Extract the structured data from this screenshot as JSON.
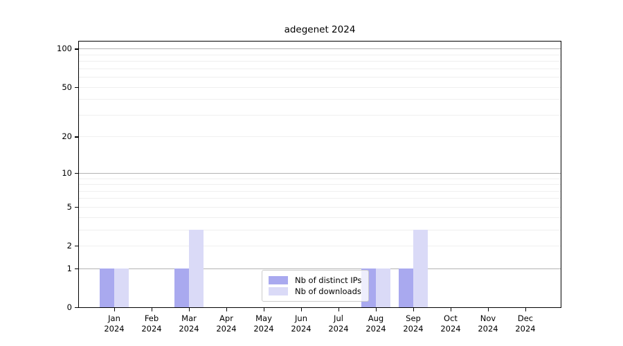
{
  "title": "adegenet 2024",
  "chart_data": {
    "type": "bar",
    "title": "adegenet 2024",
    "x_categories": [
      "Jan 2024",
      "Feb 2024",
      "Mar 2024",
      "Apr 2024",
      "May 2024",
      "Jun 2024",
      "Jul 2024",
      "Aug 2024",
      "Sep 2024",
      "Oct 2024",
      "Nov 2024",
      "Dec 2024"
    ],
    "series": [
      {
        "name": "Nb of distinct IPs",
        "color": "#a9a9ef",
        "values": [
          1,
          0,
          1,
          0,
          0,
          0,
          0,
          1,
          1,
          0,
          0,
          0
        ]
      },
      {
        "name": "Nb of downloads",
        "color": "#dadaf7",
        "values": [
          1,
          0,
          3,
          0,
          0,
          0,
          0,
          1,
          3,
          0,
          0,
          0
        ]
      }
    ],
    "y_axis": {
      "scale": "log1p",
      "tick_values": [
        0,
        1,
        2,
        5,
        10,
        20,
        50,
        100
      ],
      "tick_labels": [
        "0",
        "1",
        "2",
        "5",
        "10",
        "20",
        "50",
        "100"
      ],
      "max_value": 113.6,
      "major_gridlines": [
        1,
        10,
        100
      ],
      "minor_gridlines": [
        2,
        3,
        4,
        5,
        6,
        7,
        8,
        9,
        20,
        30,
        40,
        50,
        60,
        70,
        80,
        90
      ]
    },
    "legend": {
      "entries": [
        "Nb of distinct IPs",
        "Nb of downloads"
      ],
      "position": "inside lower-center"
    },
    "grid": "on",
    "xlabel": "",
    "ylabel": ""
  },
  "colors": {
    "distinct_ips": "#a9a9ef",
    "downloads": "#dadaf7",
    "grid_major": "#b3b3b3",
    "grid_minor": "#efefef",
    "axis": "#000000",
    "background": "#ffffff"
  }
}
